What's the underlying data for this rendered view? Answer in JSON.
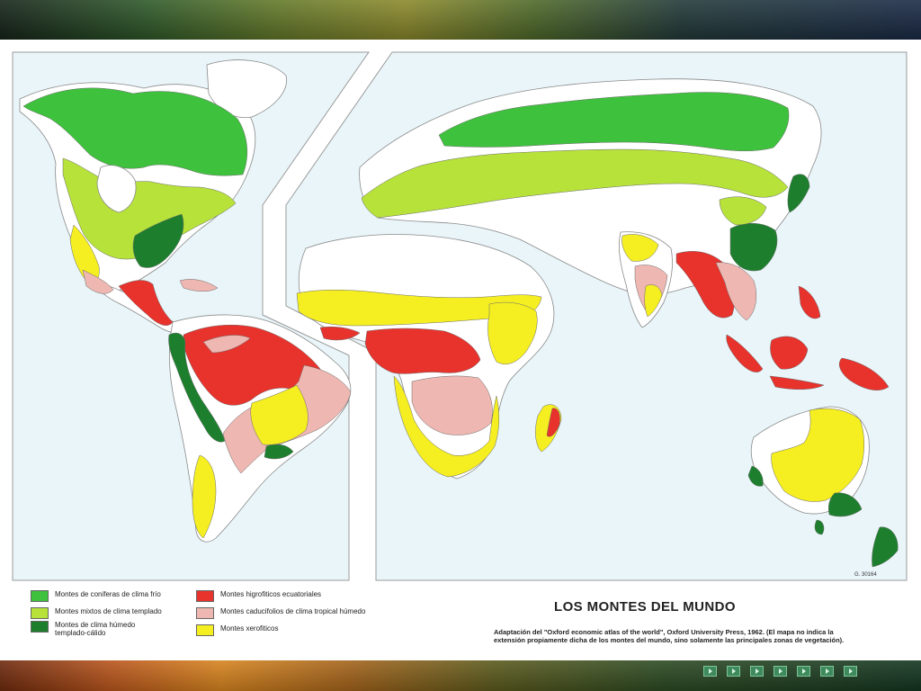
{
  "map": {
    "title": "LOS MONTES DEL MUNDO",
    "caption": "Adaptación del \"Oxford economic atlas of the world\", Oxford University Press, 1962. (El mapa no indica la extensión propiamente dicha de los montes del mundo, sino solamente las principales zonas de vegetación).",
    "reference_number": "G. 30164"
  },
  "legend": [
    {
      "label": "Montes de coniferas de clima frío",
      "color": "#3ec13c"
    },
    {
      "label": "Montes mixtos de clima templado",
      "color": "#b6e23a"
    },
    {
      "label": "Montes de clima húmedo\ntemplado-cálido",
      "color": "#1d7f2d"
    },
    {
      "label": "Montes higrofiticos ecuatoriales",
      "color": "#e8322c"
    },
    {
      "label": "Montes caducifolios de clima tropical húmedo",
      "color": "#efb7b1"
    },
    {
      "label": "Montes xerofiticos",
      "color": "#f5ee21"
    }
  ],
  "colors": {
    "ocean": "#e9f5f9",
    "land": "#ffffff",
    "coast": "#8a8a8a"
  },
  "navigation": {
    "button_count": 7
  }
}
